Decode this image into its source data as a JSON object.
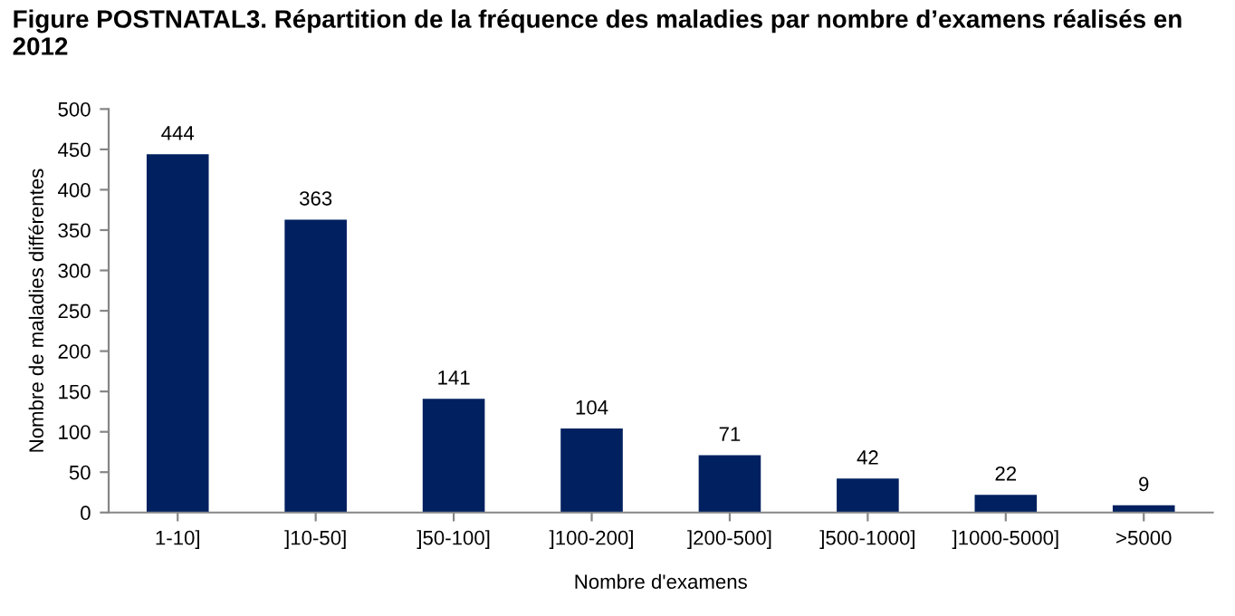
{
  "chart_data": {
    "type": "bar",
    "title": "Figure POSTNATAL3. Répartition de la fréquence des maladies par nombre d’examens réalisés en 2012",
    "xlabel": "Nombre d'examens",
    "ylabel": "Nombre de maladies différentes",
    "categories": [
      "1-10]",
      "]10-50]",
      "]50-100]",
      "]100-200]",
      "]200-500]",
      "]500-1000]",
      "]1000-5000]",
      ">5000"
    ],
    "values": [
      444,
      363,
      141,
      104,
      71,
      42,
      22,
      9
    ],
    "color": "#002060",
    "ylim": [
      0,
      500
    ],
    "yticks": [
      0,
      50,
      100,
      150,
      200,
      250,
      300,
      350,
      400,
      450,
      500
    ],
    "grid": false,
    "data_labels": true
  }
}
